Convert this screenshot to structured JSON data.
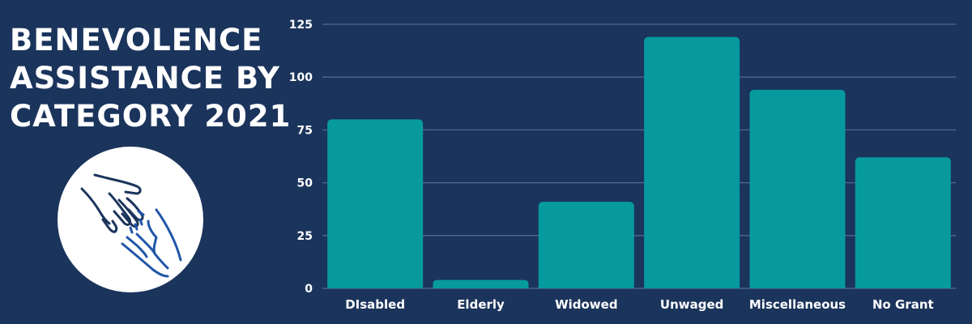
{
  "title_lines": [
    "BENEVOLENCE",
    "ASSISTANCE BY",
    "CATEGORY 2021"
  ],
  "icon": "helping-hands-icon",
  "colors": {
    "background": "#1b345c",
    "bar": "#069a9e",
    "text": "#ffffff",
    "grid": "#50698f",
    "icon_dark": "#1b345c",
    "icon_blue": "#1f56a8"
  },
  "chart_data": {
    "type": "bar",
    "categories": [
      "DIsabled",
      "Elderly",
      "Widowed",
      "Unwaged",
      "Miscellaneous",
      "No Grant"
    ],
    "values": [
      80,
      4,
      41,
      119,
      94,
      62
    ],
    "yticks": [
      0,
      25,
      50,
      75,
      100,
      125
    ],
    "ylim": [
      0,
      125
    ],
    "grid": true,
    "legend": "none"
  }
}
